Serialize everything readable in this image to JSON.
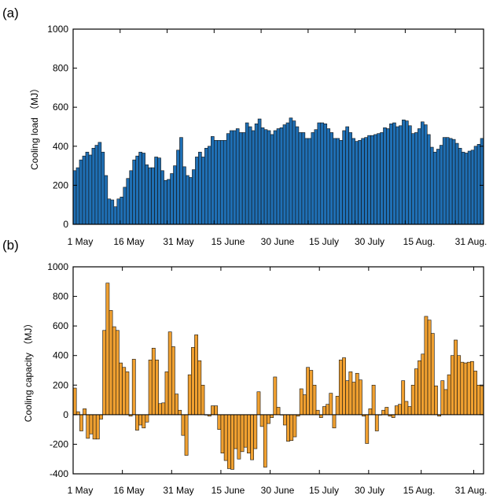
{
  "chart_data": [
    {
      "type": "bar",
      "panel_label": "(a)",
      "ylabel": "Cooling load （MJ）",
      "ylim": [
        0,
        1000
      ],
      "yticks": [
        0,
        200,
        400,
        600,
        800,
        1000
      ],
      "xtick_labels": [
        "1 May",
        "16 May",
        "31 May",
        "15 June",
        "30 June",
        "15 July",
        "30 July",
        "15 Aug.",
        "31 Aug."
      ],
      "xtick_days": [
        0,
        15,
        30,
        45,
        60,
        75,
        90,
        106,
        122
      ],
      "bar_color": "#1f6fb4",
      "values": [
        275,
        290,
        330,
        350,
        370,
        355,
        390,
        405,
        420,
        370,
        250,
        130,
        125,
        90,
        130,
        140,
        190,
        235,
        275,
        330,
        350,
        370,
        365,
        305,
        290,
        290,
        345,
        340,
        275,
        225,
        230,
        260,
        300,
        380,
        445,
        295,
        250,
        240,
        280,
        345,
        370,
        345,
        390,
        400,
        450,
        430,
        430,
        430,
        430,
        465,
        480,
        480,
        490,
        470,
        470,
        520,
        500,
        480,
        515,
        540,
        495,
        485,
        480,
        460,
        480,
        490,
        495,
        510,
        520,
        545,
        530,
        500,
        470,
        470,
        440,
        440,
        470,
        485,
        520,
        520,
        515,
        490,
        470,
        440,
        440,
        430,
        480,
        500,
        470,
        440,
        425,
        430,
        440,
        445,
        455,
        455,
        460,
        465,
        470,
        495,
        490,
        515,
        520,
        500,
        505,
        535,
        530,
        505,
        465,
        470,
        490,
        525,
        510,
        460,
        395,
        370,
        385,
        405,
        445,
        445,
        440,
        435,
        415,
        390,
        370,
        365,
        375,
        380,
        400,
        410,
        440
      ]
    },
    {
      "type": "bar",
      "panel_label": "(b)",
      "ylabel": "Cooling capacity （MJ）",
      "ylim": [
        -400,
        1000
      ],
      "yticks": [
        -400,
        -200,
        0,
        200,
        400,
        600,
        800,
        1000
      ],
      "xtick_labels": [
        "1 May",
        "16 May",
        "31 May",
        "15 June",
        "30 June",
        "15 July",
        "30 July",
        "15 Aug.",
        "31 Aug."
      ],
      "xtick_days": [
        0,
        15,
        30,
        45,
        60,
        75,
        90,
        106,
        122
      ],
      "bar_color": "#f0a030",
      "values": [
        180,
        20,
        -110,
        40,
        -160,
        -130,
        -165,
        -165,
        -30,
        570,
        890,
        705,
        595,
        570,
        350,
        320,
        290,
        -10,
        375,
        -105,
        -70,
        -90,
        -50,
        370,
        450,
        370,
        75,
        80,
        290,
        560,
        460,
        140,
        30,
        -140,
        -275,
        270,
        455,
        540,
        365,
        200,
        0,
        -10,
        60,
        60,
        -100,
        -260,
        -310,
        -365,
        -370,
        -230,
        -300,
        -250,
        -220,
        -260,
        -305,
        -230,
        155,
        -80,
        -355,
        -60,
        -20,
        255,
        50,
        0,
        -70,
        -180,
        -175,
        -150,
        -10,
        175,
        135,
        320,
        300,
        200,
        30,
        -20,
        55,
        70,
        145,
        -90,
        125,
        370,
        385,
        230,
        290,
        220,
        280,
        235,
        -10,
        -195,
        40,
        200,
        -110,
        0,
        30,
        50,
        -10,
        -20,
        60,
        70,
        230,
        90,
        55,
        200,
        310,
        365,
        410,
        665,
        640,
        550,
        195,
        -10,
        230,
        170,
        270,
        400,
        505,
        400,
        355,
        350,
        355,
        360,
        295,
        200,
        195
      ]
    }
  ]
}
